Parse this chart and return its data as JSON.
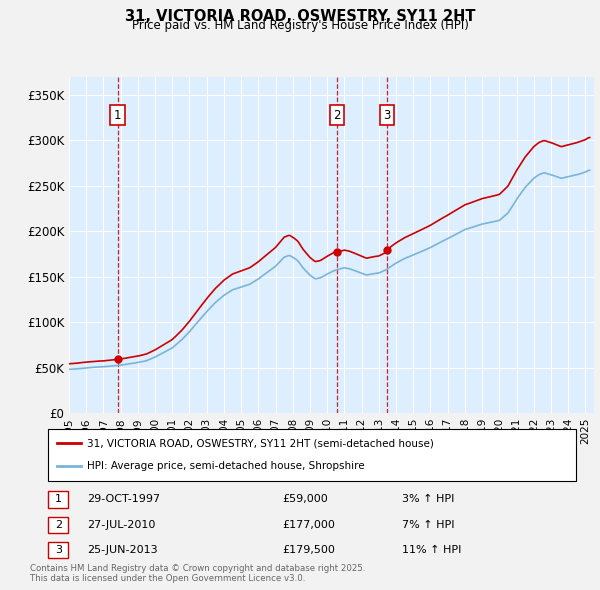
{
  "title_line1": "31, VICTORIA ROAD, OSWESTRY, SY11 2HT",
  "title_line2": "Price paid vs. HM Land Registry's House Price Index (HPI)",
  "legend_label1": "31, VICTORIA ROAD, OSWESTRY, SY11 2HT (semi-detached house)",
  "legend_label2": "HPI: Average price, semi-detached house, Shropshire",
  "footer_line1": "Contains HM Land Registry data © Crown copyright and database right 2025.",
  "footer_line2": "This data is licensed under the Open Government Licence v3.0.",
  "transactions": [
    {
      "num": 1,
      "date": "29-OCT-1997",
      "year": 1997.83,
      "price": 59000,
      "pct": "3%",
      "dir": "↑"
    },
    {
      "num": 2,
      "date": "27-JUL-2010",
      "year": 2010.57,
      "price": 177000,
      "pct": "7%",
      "dir": "↑"
    },
    {
      "num": 3,
      "date": "25-JUN-2013",
      "year": 2013.48,
      "price": 179500,
      "pct": "11%",
      "dir": "↑"
    }
  ],
  "hpi_color": "#7ab4d8",
  "price_color": "#cc0000",
  "dashed_color": "#cc0000",
  "bg_color": "#ddeeff",
  "grid_color": "#ffffff",
  "ylim": [
    0,
    370000
  ],
  "yticks": [
    0,
    50000,
    100000,
    150000,
    200000,
    250000,
    300000,
    350000
  ],
  "ytick_labels": [
    "£0",
    "£50K",
    "£100K",
    "£150K",
    "£200K",
    "£250K",
    "£300K",
    "£350K"
  ],
  "xlim_start": 1995.0,
  "xlim_end": 2025.5,
  "xtick_years": [
    1995,
    1996,
    1997,
    1998,
    1999,
    2000,
    2001,
    2002,
    2003,
    2004,
    2005,
    2006,
    2007,
    2008,
    2009,
    2010,
    2011,
    2012,
    2013,
    2014,
    2015,
    2016,
    2017,
    2018,
    2019,
    2020,
    2021,
    2022,
    2023,
    2024,
    2025
  ]
}
